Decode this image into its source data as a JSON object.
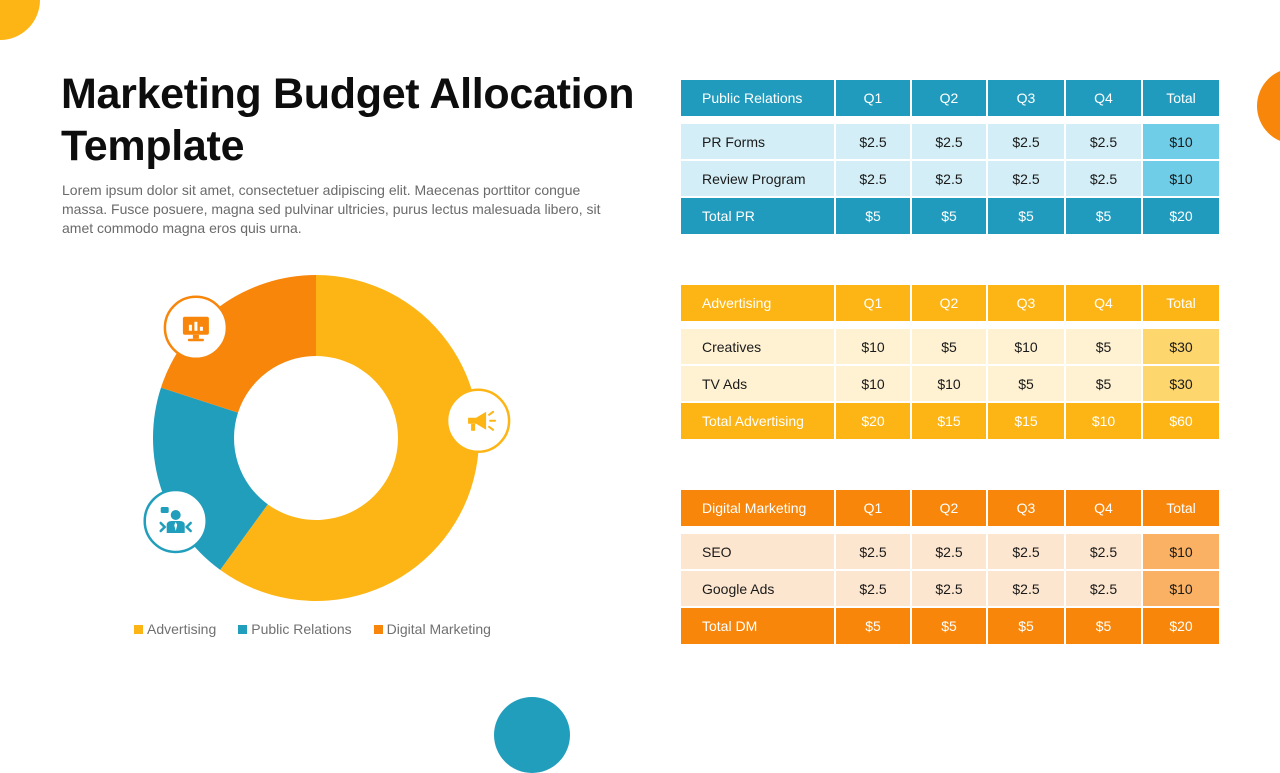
{
  "slide": {
    "title": "Marketing Budget Allocation Template",
    "description": "Lorem ipsum dolor sit amet, consectetuer adipiscing elit. Maecenas porttitor congue massa. Fusce posuere, magna sed pulvinar ultricies, purus lectus malesuada libero, sit amet commodo magna eros quis urna."
  },
  "colors": {
    "advertising": "#FDB515",
    "public_relations": "#219EBC",
    "digital_marketing": "#F7860B"
  },
  "chart_data": {
    "type": "pie",
    "donut": true,
    "categories": [
      "Advertising",
      "Public Relations",
      "Digital Marketing"
    ],
    "values": [
      60,
      20,
      20
    ],
    "colors": [
      "#FDB515",
      "#219EBC",
      "#F7860B"
    ],
    "icons": [
      "megaphone-icon",
      "businessman-icon",
      "monitor-chart-icon"
    ],
    "legend": "bottom"
  },
  "legend": [
    {
      "label": "Advertising",
      "color": "#FDB515"
    },
    {
      "label": "Public Relations",
      "color": "#219EBC"
    },
    {
      "label": "Digital Marketing",
      "color": "#F7860B"
    }
  ],
  "tables": {
    "pr": {
      "header": [
        "Public Relations",
        "Q1",
        "Q2",
        "Q3",
        "Q4",
        "Total"
      ],
      "rows": [
        [
          "PR Forms",
          "$2.5",
          "$2.5",
          "$2.5",
          "$2.5",
          "$10"
        ],
        [
          "Review Program",
          "$2.5",
          "$2.5",
          "$2.5",
          "$2.5",
          "$10"
        ]
      ],
      "total": [
        "Total PR",
        "$5",
        "$5",
        "$5",
        "$5",
        "$20"
      ]
    },
    "advertising": {
      "header": [
        "Advertising",
        "Q1",
        "Q2",
        "Q3",
        "Q4",
        "Total"
      ],
      "rows": [
        [
          "Creatives",
          "$10",
          "$5",
          "$10",
          "$5",
          "$30"
        ],
        [
          "TV Ads",
          "$10",
          "$10",
          "$5",
          "$5",
          "$30"
        ]
      ],
      "total": [
        "Total Advertising",
        "$20",
        "$15",
        "$15",
        "$10",
        "$60"
      ]
    },
    "digital": {
      "header": [
        "Digital Marketing",
        "Q1",
        "Q2",
        "Q3",
        "Q4",
        "Total"
      ],
      "rows": [
        [
          "SEO",
          "$2.5",
          "$2.5",
          "$2.5",
          "$2.5",
          "$10"
        ],
        [
          "Google Ads",
          "$2.5",
          "$2.5",
          "$2.5",
          "$2.5",
          "$10"
        ]
      ],
      "total": [
        "Total DM",
        "$5",
        "$5",
        "$5",
        "$5",
        "$20"
      ]
    }
  }
}
